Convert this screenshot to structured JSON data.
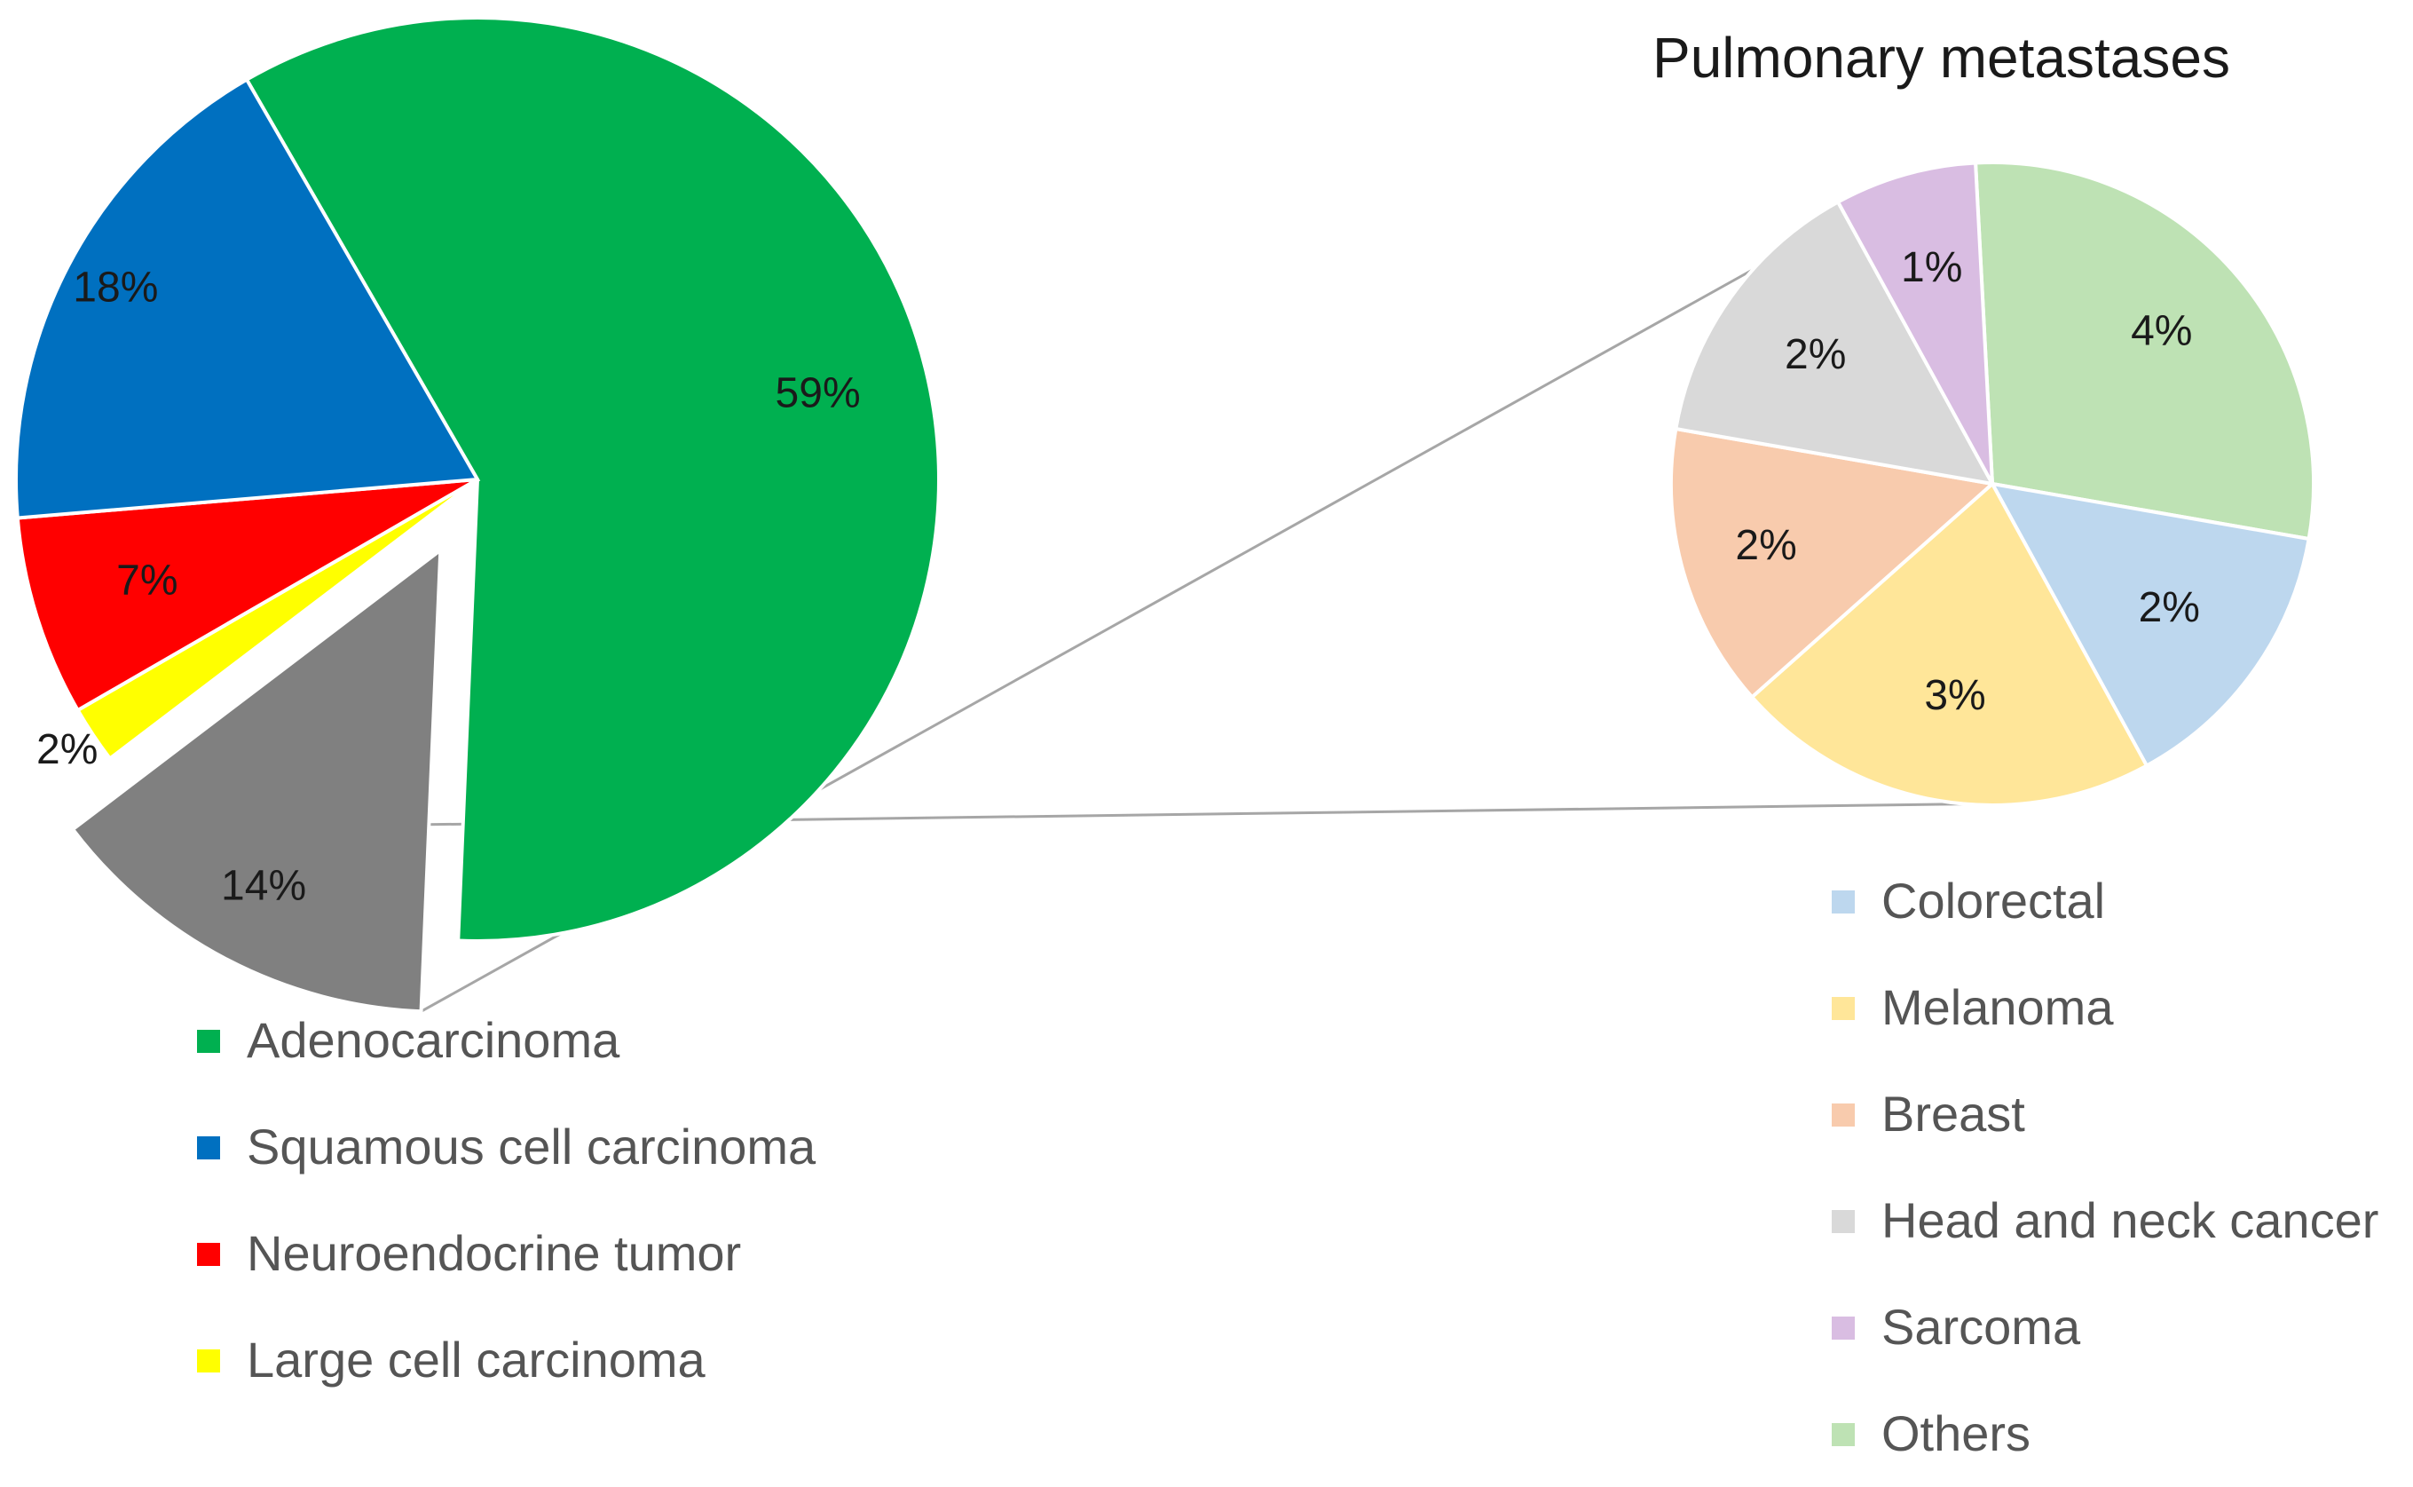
{
  "chart_data": [
    {
      "type": "pie",
      "title": "",
      "slices": [
        {
          "label": "Adenocarcinoma",
          "value": 59,
          "display": "59%",
          "color": "#00B050"
        },
        {
          "label": "Squamous cell carcinoma",
          "value": 18,
          "display": "18%",
          "color": "#0070C0"
        },
        {
          "label": "Neuroendocrine tumor",
          "value": 7,
          "display": "7%",
          "color": "#FF0000"
        },
        {
          "label": "Large cell carcinoma",
          "value": 2,
          "display": "2%",
          "color": "#FFFF00"
        },
        {
          "label": "",
          "value": 14,
          "display": "14%",
          "color": "#808080",
          "exploded": true,
          "expands_to": "Pulmonary metastases"
        }
      ],
      "legend": [
        "Adenocarcinoma",
        "Squamous cell carcinoma",
        "Neuroendocrine tumor",
        "Large cell carcinoma"
      ],
      "legend_position": "bottom-left"
    },
    {
      "type": "pie",
      "title": "Pulmonary metastases",
      "slices": [
        {
          "label": "Colorectal",
          "value": 2,
          "display": "2%",
          "color": "#BDD7EE"
        },
        {
          "label": "Melanoma",
          "value": 3,
          "display": "3%",
          "color": "#FFE699"
        },
        {
          "label": "Breast",
          "value": 2,
          "display": "2%",
          "color": "#F8CBAD"
        },
        {
          "label": "Head and neck cancer",
          "value": 2,
          "display": "2%",
          "color": "#D9D9D9"
        },
        {
          "label": "Sarcoma",
          "value": 1,
          "display": "1%",
          "color": "#D9BDE2"
        },
        {
          "label": "Others",
          "value": 4,
          "display": "4%",
          "color": "#BEE2B4"
        }
      ],
      "legend": [
        "Colorectal",
        "Melanoma",
        "Breast",
        "Head and neck cancer",
        "Sarcoma",
        "Others"
      ],
      "legend_position": "bottom-right"
    }
  ]
}
